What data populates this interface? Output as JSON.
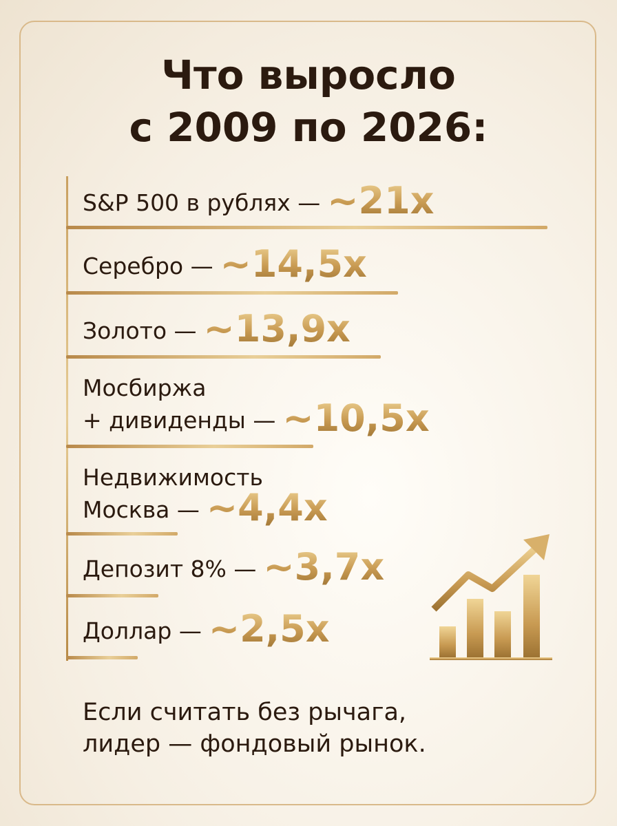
{
  "title": [
    "Что выросло",
    "с 2009 по 2026:"
  ],
  "items": [
    {
      "label": [
        "S&P 500 в рублях —"
      ],
      "value": "~21x"
    },
    {
      "label": [
        "Серебро —"
      ],
      "value": "~14,5x"
    },
    {
      "label": [
        "Золото —"
      ],
      "value": "~13,9x"
    },
    {
      "label": [
        "Мосбиржа",
        "+ дивиденды —"
      ],
      "value": "~10,5x"
    },
    {
      "label": [
        "Недвижимость",
        "Москва —"
      ],
      "value": "~4,4x"
    },
    {
      "label": [
        "Депозит 8% —"
      ],
      "value": "~3,7x"
    },
    {
      "label": [
        "Доллар —"
      ],
      "value": "~2,5x"
    }
  ],
  "footer": [
    "Если считать без рычага,",
    "лидер — фондовый рынок."
  ]
}
